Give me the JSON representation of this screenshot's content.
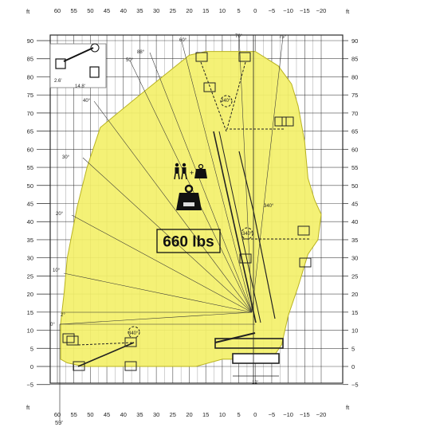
{
  "colors": {
    "envelope": "#f3f06a",
    "envelope_stroke": "#b9b321",
    "grid": "#2b2b2b",
    "machine": "#222222"
  },
  "units_label": "ft",
  "x_ticks": [
    "60",
    "55",
    "50",
    "45",
    "40",
    "35",
    "30",
    "25",
    "20",
    "15",
    "10",
    "5",
    "0",
    "−5",
    "−10",
    "−15",
    "−20"
  ],
  "y_ticks": [
    "90",
    "85",
    "80",
    "75",
    "70",
    "65",
    "60",
    "55",
    "50",
    "45",
    "40",
    "35",
    "30",
    "25",
    "20",
    "15",
    "10",
    "5",
    "0",
    "−5"
  ],
  "capacity_label": "660 lbs",
  "angle_labels": [
    "0°",
    "2°",
    "10°",
    "20°",
    "30°",
    "40°",
    "50°",
    "60°",
    "70°",
    "75°",
    "88°"
  ],
  "rotation_labels": [
    "340°",
    "340°",
    "340°",
    "340°"
  ],
  "dimension_labels": {
    "max_outreach": "59'",
    "track_width": "12'",
    "base_height": "2.6'",
    "base_length": "14.8'",
    "jib": "88'"
  },
  "icons": [
    "workers-icon",
    "load-weight-icon",
    "basket-weight-icon"
  ],
  "chart_data": {
    "type": "area",
    "xlabel": "ft",
    "ylabel": "ft",
    "xlim": [
      60,
      -20
    ],
    "ylim": [
      -5,
      90
    ],
    "capacity": "660 lbs",
    "grid": true,
    "envelope": [
      {
        "x": 59,
        "y": 2
      },
      {
        "x": 59,
        "y": 12
      },
      {
        "x": 58,
        "y": 20
      },
      {
        "x": 57,
        "y": 30
      },
      {
        "x": 54,
        "y": 44
      },
      {
        "x": 51,
        "y": 55
      },
      {
        "x": 47,
        "y": 66
      },
      {
        "x": 43,
        "y": 69
      },
      {
        "x": 35,
        "y": 75
      },
      {
        "x": 20,
        "y": 86
      },
      {
        "x": 15,
        "y": 87
      },
      {
        "x": 0,
        "y": 87
      },
      {
        "x": -7,
        "y": 83
      },
      {
        "x": -11,
        "y": 78
      },
      {
        "x": -13,
        "y": 72
      },
      {
        "x": -15,
        "y": 62
      },
      {
        "x": -16,
        "y": 52
      },
      {
        "x": -18,
        "y": 46
      },
      {
        "x": -20,
        "y": 42
      },
      {
        "x": -19,
        "y": 35
      },
      {
        "x": -16,
        "y": 31
      },
      {
        "x": -13,
        "y": 22
      },
      {
        "x": -10,
        "y": 14
      },
      {
        "x": -8,
        "y": 6
      },
      {
        "x": -5,
        "y": 2
      },
      {
        "x": 10,
        "y": 2
      },
      {
        "x": 18,
        "y": 0
      },
      {
        "x": 35,
        "y": 0
      },
      {
        "x": 52,
        "y": 0
      },
      {
        "x": 57,
        "y": 1
      }
    ]
  }
}
